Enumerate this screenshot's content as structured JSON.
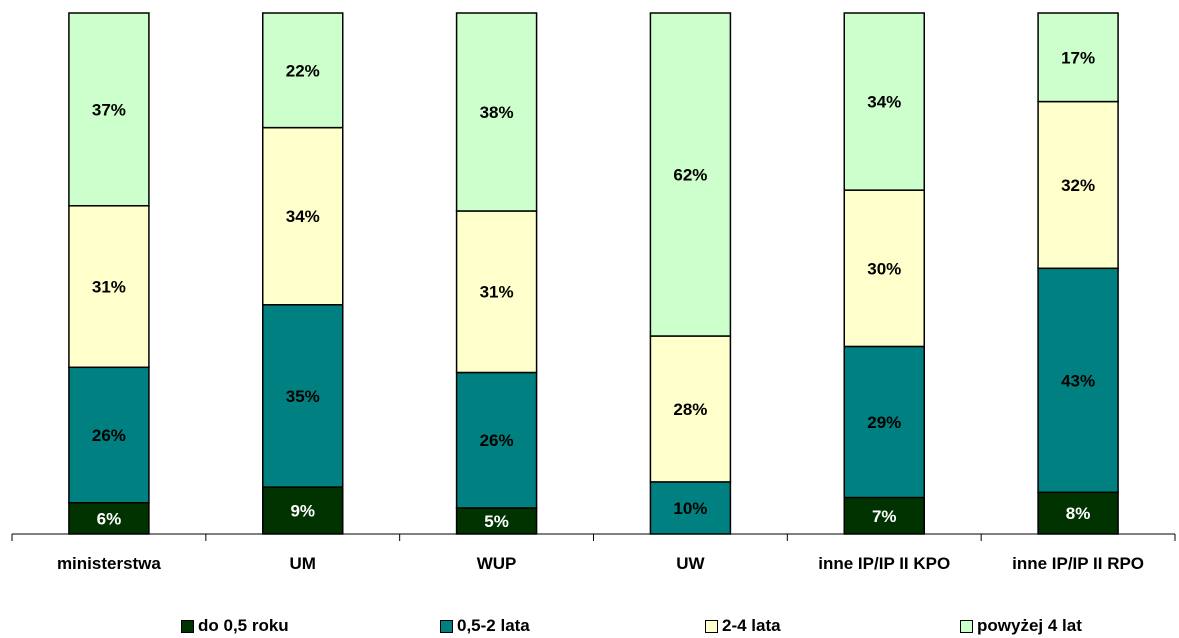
{
  "chart_data": {
    "type": "bar",
    "stacked": true,
    "normalized_percent": true,
    "categories": [
      "ministerstwa",
      "UM",
      "WUP",
      "UW",
      "inne IP/IP II KPO",
      "inne IP/IP II RPO"
    ],
    "series": [
      {
        "name": "do 0,5 roku",
        "color": "#003300",
        "label_color": "#ffffff",
        "values": [
          6,
          9,
          5,
          0,
          7,
          8
        ],
        "labels": [
          "6%",
          "9%",
          "5%",
          "",
          "7%",
          "8%"
        ]
      },
      {
        "name": "0,5-2 lata",
        "color": "#008080",
        "label_color": "#000000",
        "values": [
          26,
          35,
          26,
          10,
          29,
          43
        ],
        "labels": [
          "26%",
          "35%",
          "26%",
          "10%",
          "29%",
          "43%"
        ]
      },
      {
        "name": "2-4 lata",
        "color": "#ffffcc",
        "label_color": "#000000",
        "values": [
          31,
          34,
          31,
          28,
          30,
          32
        ],
        "labels": [
          "31%",
          "34%",
          "31%",
          "28%",
          "30%",
          "32%"
        ]
      },
      {
        "name": "powyżej 4 lat",
        "color": "#ccffcc",
        "label_color": "#000000",
        "values": [
          37,
          22,
          38,
          62,
          34,
          17
        ],
        "labels": [
          "37%",
          "22%",
          "38%",
          "62%",
          "34%",
          "17%"
        ]
      }
    ],
    "ylim": [
      0,
      100
    ],
    "grid": false,
    "legend_position": "bottom",
    "title": "",
    "xlabel": "",
    "ylabel": ""
  }
}
